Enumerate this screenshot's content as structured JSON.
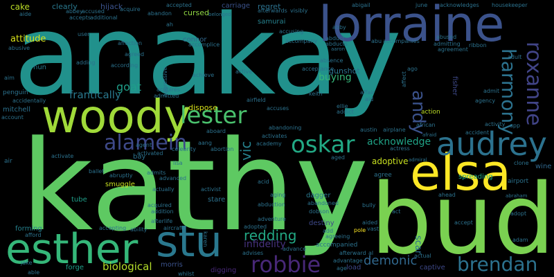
{
  "words": [
    {
      "text": "kathy",
      "color": "#5ec962"
    },
    {
      "text": "anakay",
      "color": "#21918c"
    },
    {
      "text": "bud",
      "color": "#7ad151"
    },
    {
      "text": "lorraine",
      "color": "#3b528b"
    },
    {
      "text": "woody",
      "color": "#a0da39"
    },
    {
      "text": "esther",
      "color": "#35b779"
    },
    {
      "text": "stu",
      "color": "#2a788e"
    },
    {
      "text": "elsa",
      "color": "#fde725"
    },
    {
      "text": "audrey",
      "color": "#2c728e"
    },
    {
      "text": "oskar",
      "color": "#22a884"
    },
    {
      "text": "lester",
      "color": "#4ac16d"
    },
    {
      "text": "alamein",
      "color": "#3e4989"
    },
    {
      "text": "roxanne",
      "color": "#414487"
    },
    {
      "text": "harmony",
      "color": "#2c728e"
    },
    {
      "text": "andy",
      "color": "#3b528b"
    },
    {
      "text": "robbie",
      "color": "#482878"
    },
    {
      "text": "brendan",
      "color": "#2c728e"
    },
    {
      "text": "redding",
      "color": "#22a884"
    },
    {
      "text": "demonic",
      "color": "#31688e"
    },
    {
      "text": "vic",
      "color": "#26828e"
    },
    {
      "text": "goat",
      "color": "#1f9e89"
    },
    {
      "text": "frantically",
      "color": "#2a788e"
    },
    {
      "text": "biological",
      "color": "#b5de2b"
    },
    {
      "text": "infidelity",
      "color": "#46327e"
    },
    {
      "text": "acknowledge",
      "color": "#20a386"
    },
    {
      "text": "scar",
      "color": "#2c728e"
    },
    {
      "text": "adoptive",
      "color": "#c8e020"
    },
    {
      "text": "attitude",
      "color": "#d8e219"
    },
    {
      "text": "buying",
      "color": "#35b779"
    },
    {
      "text": "cake",
      "color": "#bddf26"
    },
    {
      "text": "clearly",
      "color": "#2a788e"
    },
    {
      "text": "hijack",
      "color": "#3b528b"
    },
    {
      "text": "cursed",
      "color": "#90d743"
    },
    {
      "text": "regret",
      "color": "#2c728e"
    },
    {
      "text": "samurai",
      "color": "#26828e"
    },
    {
      "text": "gunshot",
      "color": "#2c728e"
    },
    {
      "text": "dispose",
      "color": "#d8e219"
    },
    {
      "text": "carriage",
      "color": "#3b528b"
    },
    {
      "text": "connor",
      "color": "#31688e"
    },
    {
      "text": "dagger",
      "color": "#2a788e"
    },
    {
      "text": "destiny",
      "color": "#3e4989"
    },
    {
      "text": "forming",
      "color": "#26828e"
    },
    {
      "text": "forge",
      "color": "#1f9e89"
    },
    {
      "text": "morris",
      "color": "#3b528b"
    },
    {
      "text": "digging",
      "color": "#482878"
    },
    {
      "text": "captive",
      "color": "#3e4989"
    },
    {
      "text": "smuggle",
      "color": "#c8e020"
    },
    {
      "text": "stare",
      "color": "#2c728e"
    },
    {
      "text": "nun",
      "color": "#2a788e"
    },
    {
      "text": "bay",
      "color": "#2c728e"
    },
    {
      "text": "spreading",
      "color": "#22a884"
    },
    {
      "text": "wine",
      "color": "#31688e"
    },
    {
      "text": "load",
      "color": "#3e4989"
    },
    {
      "text": "tube",
      "color": "#1f9e89"
    },
    {
      "text": "mitchell",
      "color": "#2c728e"
    },
    {
      "text": "agree",
      "color": "#2c728e"
    },
    {
      "text": "accompanied",
      "color": "#2c728e"
    },
    {
      "text": "action",
      "color": "#bddf26"
    },
    {
      "text": "fisher",
      "color": "#3e4989"
    },
    {
      "text": "keith",
      "color": "#2c728e"
    },
    {
      "text": "aid",
      "color": "#2c728e"
    },
    {
      "text": "austin",
      "color": "#2c728e"
    },
    {
      "text": "airplane",
      "color": "#2c728e"
    },
    {
      "text": "bully",
      "color": "#2c728e"
    },
    {
      "text": "pole",
      "color": "#fde725"
    },
    {
      "text": "accepting",
      "color": "#2c728e"
    },
    {
      "text": "afterlife",
      "color": "#2c728e"
    },
    {
      "text": "acquired",
      "color": "#2c728e"
    },
    {
      "text": "advises",
      "color": "#2c728e"
    },
    {
      "text": "adopted",
      "color": "#2c728e"
    },
    {
      "text": "actually",
      "color": "#2c728e"
    },
    {
      "text": "activist",
      "color": "#2c728e"
    },
    {
      "text": "advanced",
      "color": "#2c728e"
    },
    {
      "text": "admits",
      "color": "#2c728e"
    },
    {
      "text": "abruptly",
      "color": "#2c728e"
    },
    {
      "text": "ballet",
      "color": "#2c728e"
    },
    {
      "text": "agent",
      "color": "#2c728e"
    },
    {
      "text": "activated",
      "color": "#2c728e"
    },
    {
      "text": "lisa",
      "color": "#2c728e"
    },
    {
      "text": "aang",
      "color": "#2c728e"
    },
    {
      "text": "abortion",
      "color": "#2c728e"
    },
    {
      "text": "academy",
      "color": "#2c728e"
    },
    {
      "text": "activates",
      "color": "#2c728e"
    },
    {
      "text": "abandoning",
      "color": "#2c728e"
    },
    {
      "text": "aboard",
      "color": "#2c728e"
    },
    {
      "text": "accuses",
      "color": "#2c728e"
    },
    {
      "text": "airfield",
      "color": "#2c728e"
    },
    {
      "text": "admitted",
      "color": "#2c728e"
    },
    {
      "text": "acquires",
      "color": "#2c728e"
    },
    {
      "text": "achieve",
      "color": "#2c728e"
    },
    {
      "text": "active",
      "color": "#2c728e"
    },
    {
      "text": "aggressive",
      "color": "#2c728e"
    },
    {
      "text": "according",
      "color": "#2c728e"
    },
    {
      "text": "adding",
      "color": "#2c728e"
    },
    {
      "text": "agreed",
      "color": "#2c728e"
    },
    {
      "text": "affection",
      "color": "#2c728e"
    },
    {
      "text": "accomplice",
      "color": "#2c728e"
    },
    {
      "text": "accompany",
      "color": "#2c728e"
    },
    {
      "text": "accusing",
      "color": "#2c728e"
    },
    {
      "text": "abduct",
      "color": "#2c728e"
    },
    {
      "text": "abducts",
      "color": "#2c728e"
    },
    {
      "text": "aaron",
      "color": "#2c728e"
    },
    {
      "text": "absence",
      "color": "#2c728e"
    },
    {
      "text": "abby",
      "color": "#2c728e"
    },
    {
      "text": "abu",
      "color": "#2c728e"
    },
    {
      "text": "accompanies",
      "color": "#2c728e"
    },
    {
      "text": "abused",
      "color": "#2c728e"
    },
    {
      "text": "admitting",
      "color": "#2c728e"
    },
    {
      "text": "agreement",
      "color": "#2c728e"
    },
    {
      "text": "ribbon",
      "color": "#2c728e"
    },
    {
      "text": "adult",
      "color": "#2c728e"
    },
    {
      "text": "ago",
      "color": "#2c728e"
    },
    {
      "text": "acknowledges",
      "color": "#2c728e"
    },
    {
      "text": "housekeeper",
      "color": "#2c728e"
    },
    {
      "text": "june",
      "color": "#2c728e"
    },
    {
      "text": "abigail",
      "color": "#2c728e"
    },
    {
      "text": "visibly",
      "color": "#2c728e"
    },
    {
      "text": "afterwards",
      "color": "#2c728e"
    },
    {
      "text": "belonged",
      "color": "#2c728e"
    },
    {
      "text": "accepted",
      "color": "#2c728e"
    },
    {
      "text": "abandon",
      "color": "#2c728e"
    },
    {
      "text": "acquire",
      "color": "#2c728e"
    },
    {
      "text": "abbey",
      "color": "#2c728e"
    },
    {
      "text": "accused",
      "color": "#2c728e"
    },
    {
      "text": "accepts",
      "color": "#2c728e"
    },
    {
      "text": "additional",
      "color": "#2c728e"
    },
    {
      "text": "aide",
      "color": "#2c728e"
    },
    {
      "text": "abusive",
      "color": "#2c728e"
    },
    {
      "text": "aim",
      "color": "#2c728e"
    },
    {
      "text": "penguin",
      "color": "#2c728e"
    },
    {
      "text": "accidentally",
      "color": "#2c728e"
    },
    {
      "text": "account",
      "color": "#2c728e"
    },
    {
      "text": "air",
      "color": "#2c728e"
    },
    {
      "text": "activate",
      "color": "#2c728e"
    },
    {
      "text": "admiral",
      "color": "#2c728e"
    },
    {
      "text": "african",
      "color": "#2c728e"
    },
    {
      "text": "afraid",
      "color": "#2c728e"
    },
    {
      "text": "accident",
      "color": "#2c728e"
    },
    {
      "text": "agency",
      "color": "#2c728e"
    },
    {
      "text": "activity",
      "color": "#2c728e"
    },
    {
      "text": "app",
      "color": "#2c728e"
    },
    {
      "text": "clone",
      "color": "#2c728e"
    },
    {
      "text": "airport",
      "color": "#2c728e"
    },
    {
      "text": "abraham",
      "color": "#2c728e"
    },
    {
      "text": "adopt",
      "color": "#2c728e"
    },
    {
      "text": "adam",
      "color": "#2c728e"
    },
    {
      "text": "accept",
      "color": "#2c728e"
    },
    {
      "text": "ahead",
      "color": "#2c728e"
    },
    {
      "text": "actress",
      "color": "#2c728e"
    },
    {
      "text": "aging",
      "color": "#2c728e"
    },
    {
      "text": "acid",
      "color": "#2c728e"
    },
    {
      "text": "abduction",
      "color": "#2c728e"
    },
    {
      "text": "adventure",
      "color": "#2c728e"
    },
    {
      "text": "abandoned",
      "color": "#2c728e"
    },
    {
      "text": "aided",
      "color": "#2c728e"
    },
    {
      "text": "act",
      "color": "#2c728e"
    },
    {
      "text": "actual",
      "color": "#2c728e"
    },
    {
      "text": "add",
      "color": "#2c728e"
    },
    {
      "text": "agreeing",
      "color": "#2c728e"
    },
    {
      "text": "advance",
      "color": "#2c728e"
    },
    {
      "text": "age",
      "color": "#2c728e"
    },
    {
      "text": "advantage",
      "color": "#2c728e"
    },
    {
      "text": "afterward",
      "color": "#2c728e"
    },
    {
      "text": "ability",
      "color": "#2c728e"
    },
    {
      "text": "aircraft",
      "color": "#2c728e"
    },
    {
      "text": "karen",
      "color": "#2c728e"
    },
    {
      "text": "afford",
      "color": "#2c728e"
    },
    {
      "text": "addition",
      "color": "#2c728e"
    },
    {
      "text": "celebrity",
      "color": "#2c728e"
    },
    {
      "text": "whilst",
      "color": "#2c728e"
    },
    {
      "text": "able",
      "color": "#2c728e"
    },
    {
      "text": "jake",
      "color": "#2c728e"
    },
    {
      "text": "user",
      "color": "#2c728e"
    },
    {
      "text": "ah",
      "color": "#2c728e"
    },
    {
      "text": "acceptance",
      "color": "#2c728e"
    },
    {
      "text": "affair",
      "color": "#2c728e"
    },
    {
      "text": "ellie",
      "color": "#2c728e"
    },
    {
      "text": "admit",
      "color": "#2c728e"
    },
    {
      "text": "affect",
      "color": "#2c728e"
    },
    {
      "text": "vast",
      "color": "#2c728e"
    },
    {
      "text": "aged",
      "color": "#2c728e"
    },
    {
      "text": "dobson",
      "color": "#2c728e"
    },
    {
      "text": "addict",
      "color": "#2c728e"
    },
    {
      "text": "al",
      "color": "#2c728e"
    }
  ]
}
